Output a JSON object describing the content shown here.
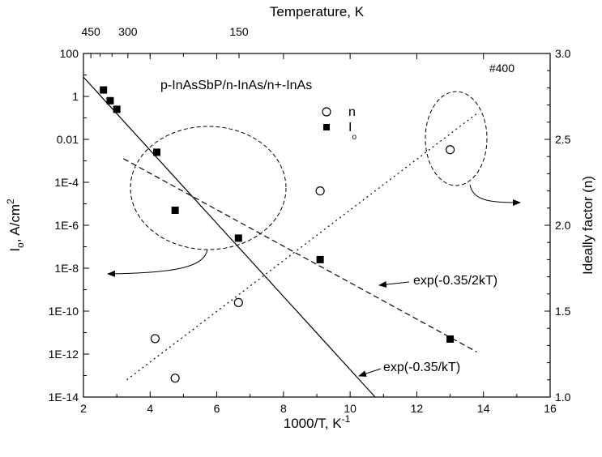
{
  "chart_data": {
    "type": "scatter",
    "title": "",
    "sample_label": "#400",
    "structure_label": "p-InAsSbP/n-InAs/n+-InAs",
    "xlabel": "1000/T, K",
    "xlabel_sup": "-1",
    "top_xlabel": "Temperature, K",
    "ylabel_left_main": "I",
    "ylabel_left_sub": "o",
    "ylabel_left_rest": ", A/cm",
    "ylabel_left_sup": "2",
    "ylabel_right": "Ideally factor (n)",
    "xlim": [
      2,
      16
    ],
    "ylim_left_log10": [
      -14,
      2
    ],
    "ylim_right": [
      1.0,
      3.0
    ],
    "x_ticks": [
      2,
      4,
      6,
      8,
      10,
      12,
      14,
      16
    ],
    "x_tick_labels": [
      "2",
      "4",
      "6",
      "8",
      "10",
      "12",
      "14",
      "16"
    ],
    "top_ticks": [
      {
        "label": "450",
        "x": 2.222
      },
      {
        "label": "300",
        "x": 3.333
      },
      {
        "label": "150",
        "x": 6.667
      }
    ],
    "y_left_ticks": [
      {
        "exp": 2,
        "label": "100"
      },
      {
        "exp": 0,
        "label": "1"
      },
      {
        "exp": -2,
        "label": "0.01"
      },
      {
        "exp": -4,
        "label": "1E-4"
      },
      {
        "exp": -6,
        "label": "1E-6"
      },
      {
        "exp": -8,
        "label": "1E-8"
      },
      {
        "exp": -10,
        "label": "1E-10"
      },
      {
        "exp": -12,
        "label": "1E-12"
      },
      {
        "exp": -14,
        "label": "1E-14"
      }
    ],
    "y_right_ticks": [
      {
        "value": 3.0,
        "label": "3.0"
      },
      {
        "value": 2.5,
        "label": "2.5"
      },
      {
        "value": 2.0,
        "label": "2.0"
      },
      {
        "value": 1.5,
        "label": "1.5"
      },
      {
        "value": 1.0,
        "label": "1.0"
      }
    ],
    "legend": [
      {
        "marker": "open-circle",
        "label": "n",
        "label_sub": ""
      },
      {
        "marker": "filled-square",
        "label": "I",
        "label_sub": "o"
      }
    ],
    "series": [
      {
        "name": "I",
        "axis": "left",
        "marker": "filled-square",
        "x": [
          2.6,
          2.8,
          3.0,
          4.2,
          4.75,
          6.65,
          9.1,
          13.0
        ],
        "log10_y": [
          0.3,
          -0.2,
          -0.6,
          -2.6,
          -5.3,
          -6.6,
          -7.6,
          -11.3
        ]
      },
      {
        "name": "n",
        "axis": "right",
        "marker": "open-circle",
        "x": [
          4.15,
          4.75,
          6.65,
          9.1,
          13.0
        ],
        "y": [
          1.34,
          1.11,
          1.55,
          2.2,
          2.44
        ]
      }
    ],
    "fit_lines": [
      {
        "label": "exp(-0.35/kT)",
        "style": "solid",
        "axis": "left",
        "x": [
          2.0,
          10.75
        ],
        "log10_y": [
          0.9,
          -14.0
        ]
      },
      {
        "label": "exp(-0.35/2kT)",
        "style": "dashed",
        "axis": "left",
        "x": [
          3.2,
          13.8
        ],
        "log10_y": [
          -2.9,
          -11.9
        ]
      },
      {
        "label": "",
        "style": "dotted",
        "axis": "right",
        "x": [
          3.3,
          13.8
        ],
        "y": [
          1.1,
          2.65
        ]
      }
    ],
    "grid": false
  }
}
